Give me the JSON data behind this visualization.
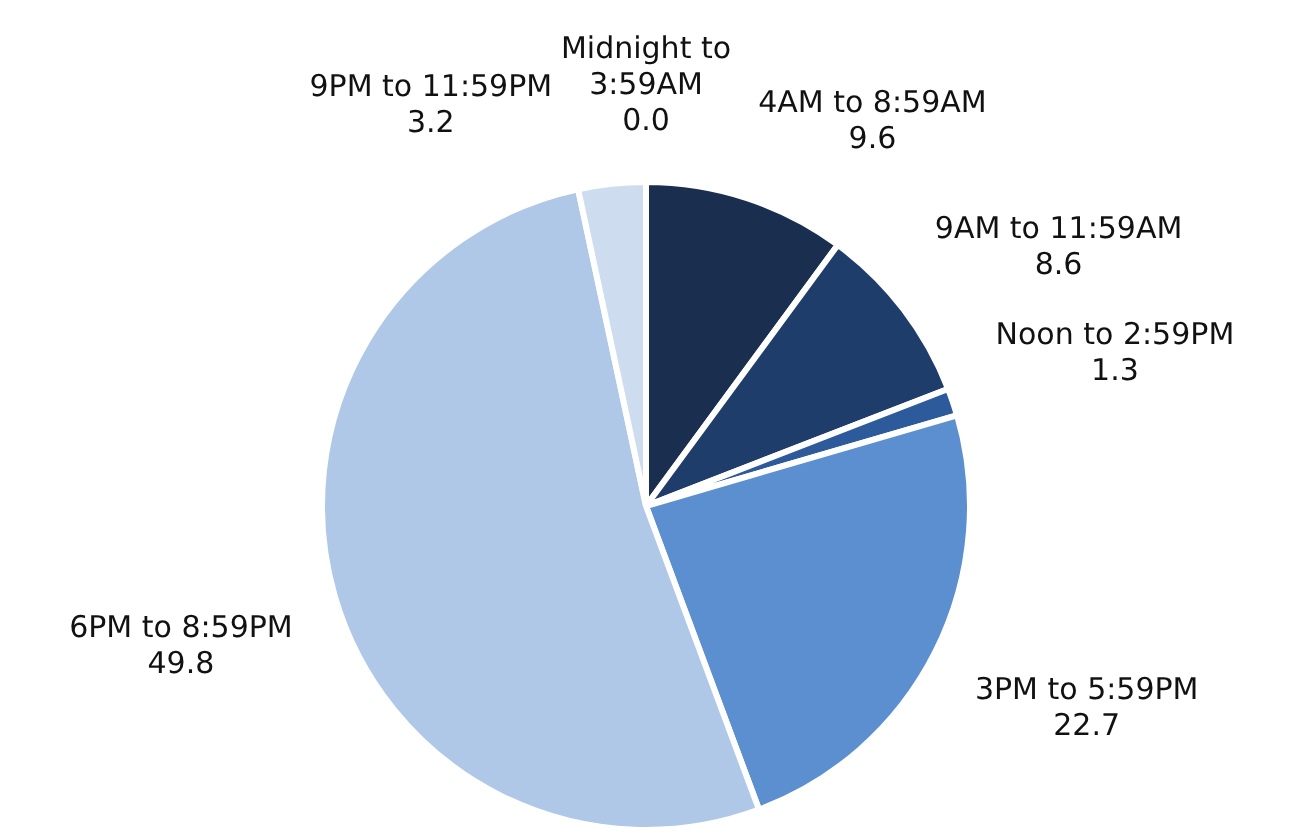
{
  "chart_data": {
    "type": "pie",
    "categories": [
      "Midnight to 3:59AM",
      "4AM to 8:59AM",
      "9AM to 11:59AM",
      "Noon to 2:59PM",
      "3PM to 5:59PM",
      "6PM to 8:59PM",
      "9PM to 11:59PM"
    ],
    "values": [
      0.0,
      9.6,
      8.6,
      1.3,
      22.7,
      49.8,
      3.2
    ],
    "colors": [
      "#14284a",
      "#1a2e4f",
      "#1f3d6b",
      "#2c5a9a",
      "#5b8fd0",
      "#afc8e8",
      "#cddcef"
    ],
    "value_labels": [
      "0.0",
      "9.6",
      "8.6",
      "1.3",
      "22.7",
      "49.8",
      "3.2"
    ]
  }
}
